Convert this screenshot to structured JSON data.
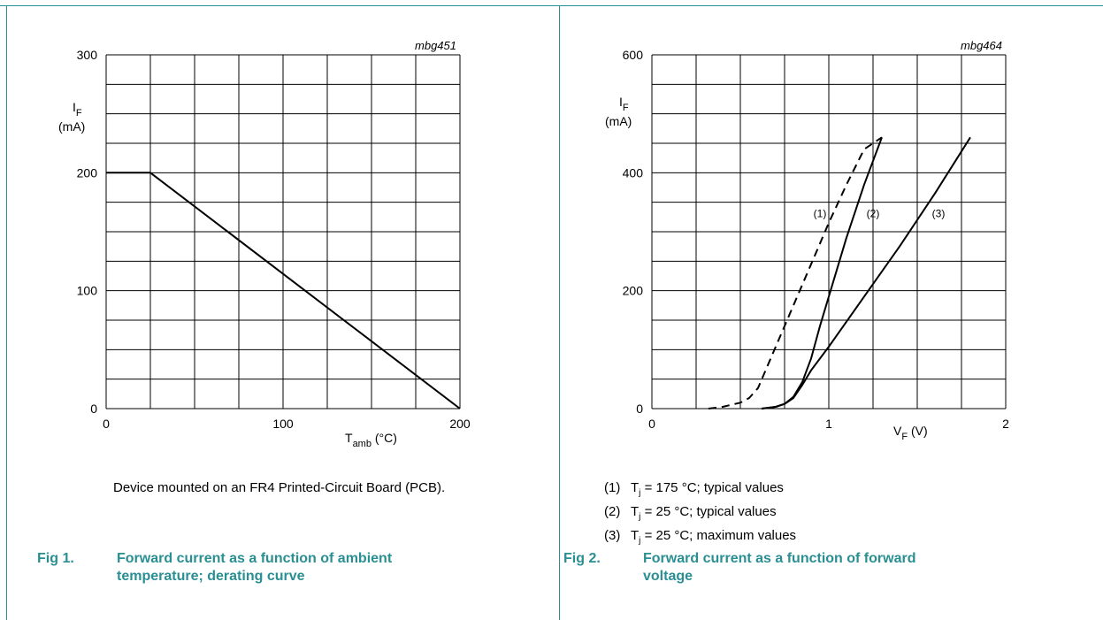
{
  "colors": {
    "accent": "#2a8f93",
    "grid": "#000000"
  },
  "chart_data": [
    {
      "type": "line",
      "code": "mbg451",
      "ylabel_main": "I",
      "ylabel_sub": "F",
      "ylabel_unit": "(mA)",
      "xlabel_main": "T",
      "xlabel_sub": "amb",
      "xlabel_unit": "(°C)",
      "xlim": [
        0,
        200
      ],
      "ylim": [
        0,
        300
      ],
      "xticks": [
        0,
        100,
        200
      ],
      "yticks": [
        0,
        100,
        200,
        300
      ],
      "grid": true,
      "series": [
        {
          "style": "solid",
          "x": [
            0,
            25,
            200
          ],
          "y": [
            200,
            200,
            0
          ]
        }
      ],
      "note": "Device mounted on an FR4 Printed-Circuit Board (PCB).",
      "caption_num": "Fig 1.",
      "caption_text": [
        "Forward current as a function of ambient",
        "temperature; derating curve"
      ]
    },
    {
      "type": "line",
      "code": "mbg464",
      "ylabel_main": "I",
      "ylabel_sub": "F",
      "ylabel_unit": "(mA)",
      "xlabel_main": "V",
      "xlabel_sub": "F",
      "xlabel_unit": "(V)",
      "xlim": [
        0,
        2
      ],
      "ylim": [
        0,
        600
      ],
      "xticks": [
        0,
        1,
        2
      ],
      "yticks": [
        0,
        200,
        400,
        600
      ],
      "grid": true,
      "series": [
        {
          "label": "(1)",
          "style": "dashed",
          "x": [
            0.32,
            0.4,
            0.5,
            0.55,
            0.6,
            0.7,
            0.8,
            0.9,
            1.0,
            1.1,
            1.2,
            1.3
          ],
          "y": [
            0,
            3,
            10,
            18,
            35,
            105,
            175,
            245,
            315,
            380,
            440,
            460
          ]
        },
        {
          "label": "(2)",
          "style": "solid",
          "x": [
            0.62,
            0.7,
            0.75,
            0.8,
            0.85,
            0.9,
            0.95,
            1.0,
            1.1,
            1.2,
            1.3
          ],
          "y": [
            0,
            3,
            8,
            20,
            45,
            85,
            140,
            190,
            290,
            380,
            460
          ]
        },
        {
          "label": "(3)",
          "style": "solid",
          "x": [
            0.62,
            0.7,
            0.75,
            0.8,
            0.85,
            0.9,
            1.0,
            1.2,
            1.4,
            1.6,
            1.8
          ],
          "y": [
            0,
            3,
            8,
            18,
            40,
            65,
            105,
            190,
            275,
            365,
            460
          ]
        }
      ],
      "curve_label_pos": [
        {
          "x": 0.95,
          "y": 325
        },
        {
          "x": 1.25,
          "y": 325
        },
        {
          "x": 1.62,
          "y": 325
        }
      ],
      "legend": [
        {
          "num": "(1)",
          "pre": "T",
          "sub": "j",
          "post": " = 175 °C; typical values"
        },
        {
          "num": "(2)",
          "pre": "T",
          "sub": "j",
          "post": " = 25 °C; typical values"
        },
        {
          "num": "(3)",
          "pre": "T",
          "sub": "j",
          "post": " = 25 °C; maximum values"
        }
      ],
      "caption_num": "Fig 2.",
      "caption_text": [
        "Forward current as a function of forward",
        "voltage"
      ]
    }
  ]
}
